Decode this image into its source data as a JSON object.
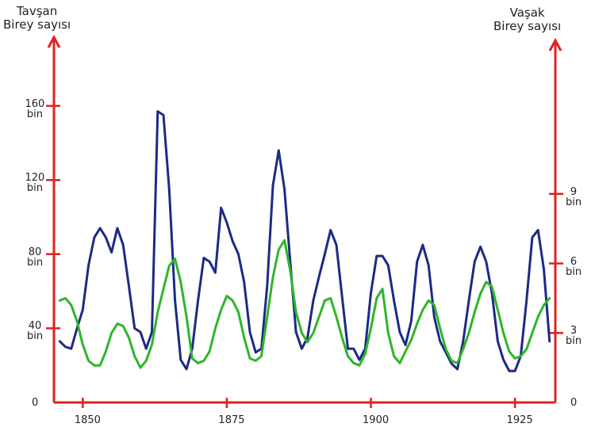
{
  "chart_data": {
    "type": "line",
    "y_label": "Tavşan\nBirey sayısı",
    "y2_label": "Vaşak\nBirey sayısı",
    "x": [
      1846,
      1847,
      1848,
      1849,
      1850,
      1851,
      1852,
      1853,
      1854,
      1855,
      1856,
      1857,
      1858,
      1859,
      1860,
      1861,
      1862,
      1863,
      1864,
      1865,
      1866,
      1867,
      1868,
      1869,
      1870,
      1871,
      1872,
      1873,
      1874,
      1875,
      1876,
      1877,
      1878,
      1879,
      1880,
      1881,
      1882,
      1883,
      1884,
      1885,
      1886,
      1887,
      1888,
      1889,
      1890,
      1891,
      1892,
      1893,
      1894,
      1895,
      1896,
      1897,
      1898,
      1899,
      1900,
      1901,
      1902,
      1903,
      1904,
      1905,
      1906,
      1907,
      1908,
      1909,
      1910,
      1911,
      1912,
      1913,
      1914,
      1915,
      1916,
      1917,
      1918,
      1919,
      1920,
      1921,
      1922,
      1923,
      1924,
      1925,
      1926,
      1927,
      1928,
      1929,
      1930,
      1931
    ],
    "series": [
      {
        "color": "#1c2a85",
        "values": [
          33,
          30,
          29,
          40,
          50,
          74,
          89,
          94,
          89,
          81,
          94,
          85,
          63,
          40,
          38,
          29,
          38,
          157,
          155,
          115,
          55,
          23,
          18,
          29,
          55,
          78,
          76,
          70,
          105,
          97,
          87,
          80,
          65,
          38,
          27,
          29,
          63,
          117,
          136,
          115,
          76,
          38,
          29,
          35,
          55,
          68,
          80,
          93,
          85,
          57,
          29,
          29,
          23,
          29,
          59,
          79,
          79,
          74,
          55,
          38,
          31,
          44,
          76,
          85,
          74,
          46,
          33,
          27,
          21,
          18,
          33,
          55,
          76,
          84,
          76,
          59,
          33,
          23,
          17,
          17,
          25,
          55,
          89,
          93,
          72,
          33
        ]
      },
      {
        "color": "#2fb52a",
        "axis": "y2",
        "values": [
          4.4,
          4.5,
          4.2,
          3.5,
          2.5,
          1.8,
          1.6,
          1.6,
          2.2,
          3.0,
          3.4,
          3.3,
          2.8,
          2.0,
          1.5,
          1.8,
          2.5,
          3.9,
          4.9,
          5.9,
          6.2,
          5.2,
          3.7,
          1.9,
          1.7,
          1.8,
          2.2,
          3.2,
          4.0,
          4.6,
          4.4,
          3.9,
          2.8,
          1.9,
          1.8,
          2.0,
          3.7,
          5.4,
          6.6,
          7.0,
          5.7,
          3.9,
          3.0,
          2.6,
          3.0,
          3.7,
          4.4,
          4.5,
          3.7,
          2.8,
          2.0,
          1.7,
          1.6,
          2.1,
          3.2,
          4.5,
          4.9,
          3.0,
          2.0,
          1.7,
          2.2,
          2.7,
          3.4,
          4.0,
          4.4,
          4.2,
          3.2,
          2.3,
          1.8,
          1.7,
          2.3,
          3.0,
          3.9,
          4.7,
          5.2,
          5.0,
          4.0,
          3.0,
          2.2,
          1.9,
          2.0,
          2.3,
          3.0,
          3.7,
          4.2,
          4.5
        ]
      }
    ],
    "xlim": [
      1845,
      1932
    ],
    "xticks": [
      1850,
      1875,
      1900,
      1925
    ],
    "ylim": [
      0,
      200
    ],
    "yticks": [
      0,
      {
        "value": 40,
        "label": "40\nbin"
      },
      {
        "value": 80,
        "label": "80\nbin"
      },
      {
        "value": 120,
        "label": "120\nbin"
      },
      {
        "value": 160,
        "label": "160\nbin"
      }
    ],
    "y2lim": [
      0,
      16
    ],
    "y2ticks": [
      0,
      {
        "value": 3,
        "label": "3\nbin"
      },
      {
        "value": 6,
        "label": "6\nbin"
      },
      {
        "value": 9,
        "label": "9\nbin"
      }
    ]
  }
}
